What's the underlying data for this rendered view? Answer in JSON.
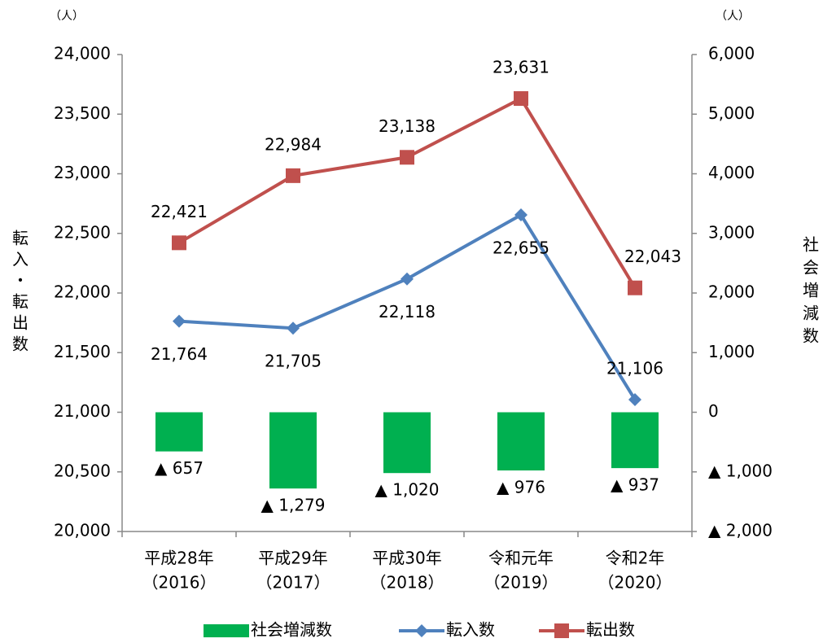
{
  "chart_data": {
    "type": "bar",
    "y_unit": "（人）",
    "y2_unit": "（人）",
    "ylabel": "転入・転出数",
    "y2label": "社会増減数",
    "categories": [
      [
        "平成28年",
        "（2016）"
      ],
      [
        "平成29年",
        "（2017）"
      ],
      [
        "平成30年",
        "（2018）"
      ],
      [
        "令和元年",
        "（2019）"
      ],
      [
        "令和2年",
        "（2020）"
      ]
    ],
    "ylim": [
      20000,
      24000
    ],
    "yticks": [
      {
        "value": 20000,
        "label": "20,000"
      },
      {
        "value": 20500,
        "label": "20,500"
      },
      {
        "value": 21000,
        "label": "21,000"
      },
      {
        "value": 21500,
        "label": "21,500"
      },
      {
        "value": 22000,
        "label": "22,000"
      },
      {
        "value": 22500,
        "label": "22,500"
      },
      {
        "value": 23000,
        "label": "23,000"
      },
      {
        "value": 23500,
        "label": "23,500"
      },
      {
        "value": 24000,
        "label": "24,000"
      }
    ],
    "y2lim": [
      -2000,
      6000
    ],
    "y2ticks": [
      {
        "value": -2000,
        "label": "▲ 2,000"
      },
      {
        "value": -1000,
        "label": "▲ 1,000"
      },
      0,
      {
        "value": 1000,
        "label": "1,000"
      },
      {
        "value": 2000,
        "label": "2,000"
      },
      {
        "value": 3000,
        "label": "3,000"
      },
      {
        "value": 4000,
        "label": "4,000"
      },
      {
        "value": 5000,
        "label": "5,000"
      },
      {
        "value": 6000,
        "label": "6,000"
      }
    ],
    "series": [
      {
        "name": "社会増減数",
        "type": "bar",
        "axis": "y2",
        "color": "#00b050",
        "values": [
          -657,
          -1279,
          -1020,
          -976,
          -937
        ],
        "value_labels": [
          "▲ 657",
          "▲ 1,279",
          "▲ 1,020",
          "▲ 976",
          "▲ 937"
        ]
      },
      {
        "name": "転入数",
        "type": "line",
        "color": "#4f81bd",
        "values": [
          21764,
          21705,
          22118,
          22655,
          21106
        ],
        "value_labels": [
          "21,764",
          "21,705",
          "22,118",
          "22,655",
          "21,106"
        ]
      },
      {
        "name": "転出数",
        "type": "line",
        "color": "#c0504d",
        "values": [
          22421,
          22984,
          23138,
          23631,
          22043
        ],
        "value_labels": [
          "22,421",
          "22,984",
          "23,138",
          "23,631",
          "22,043"
        ]
      }
    ]
  }
}
